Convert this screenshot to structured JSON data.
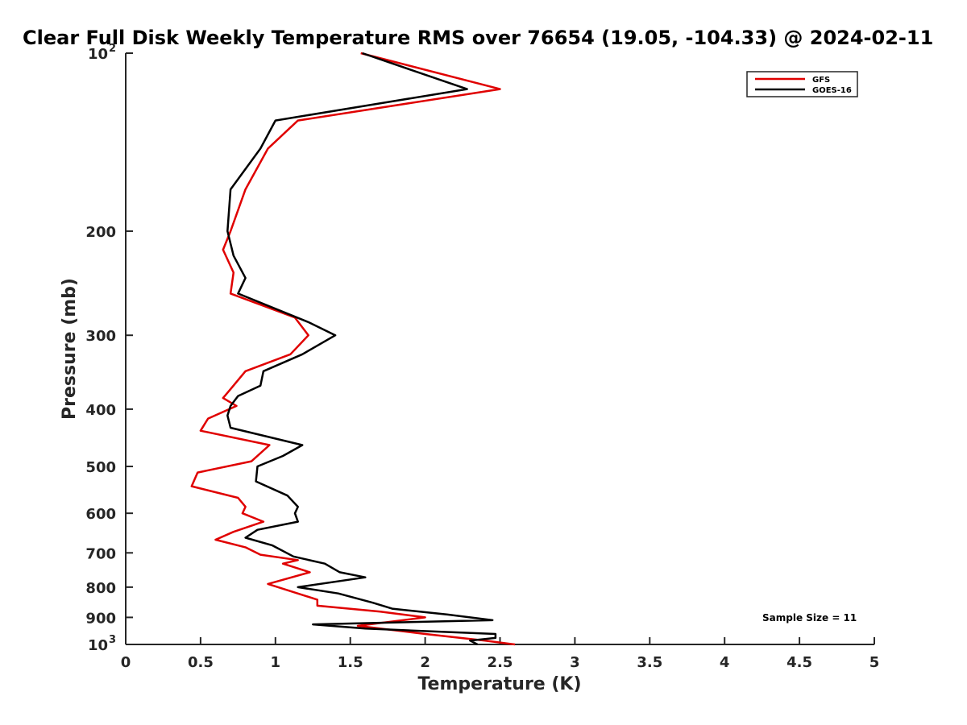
{
  "chart_data": {
    "type": "line",
    "title": "Clear Full Disk Weekly Temperature RMS over 76654 (19.05, -104.33) @ 2024-02-11",
    "xlabel": "Temperature (K)",
    "ylabel": "Pressure (mb)",
    "xlim": [
      0,
      5
    ],
    "ylim": [
      100,
      1000
    ],
    "yscale": "log",
    "y_reversed": true,
    "x_ticks": [
      0,
      0.5,
      1,
      1.5,
      2,
      2.5,
      3,
      3.5,
      4,
      4.5,
      5
    ],
    "x_tick_labels": [
      "0",
      "0.5",
      "1",
      "1.5",
      "2",
      "2.5",
      "3",
      "3.5",
      "4",
      "4.5",
      "5"
    ],
    "y_ticks": [
      {
        "value": 100,
        "label": "10",
        "exp": "2"
      },
      {
        "value": 200,
        "label": "200"
      },
      {
        "value": 300,
        "label": "300"
      },
      {
        "value": 400,
        "label": "400"
      },
      {
        "value": 500,
        "label": "500"
      },
      {
        "value": 600,
        "label": "600"
      },
      {
        "value": 700,
        "label": "700"
      },
      {
        "value": 800,
        "label": "800"
      },
      {
        "value": 900,
        "label": "900"
      },
      {
        "value": 1000,
        "label": "10",
        "exp": "3"
      }
    ],
    "legend_position": "top-right",
    "annotation": "Sample Size = 11",
    "series": [
      {
        "name": "GFS",
        "color": "#e00000",
        "points": [
          [
            1.57,
            100
          ],
          [
            2.5,
            115
          ],
          [
            1.15,
            130
          ],
          [
            0.95,
            145
          ],
          [
            0.8,
            170
          ],
          [
            0.7,
            200
          ],
          [
            0.65,
            215
          ],
          [
            0.72,
            235
          ],
          [
            0.7,
            255
          ],
          [
            1.13,
            280
          ],
          [
            1.22,
            300
          ],
          [
            1.1,
            323
          ],
          [
            0.8,
            345
          ],
          [
            0.7,
            370
          ],
          [
            0.65,
            383
          ],
          [
            0.74,
            395
          ],
          [
            0.55,
            415
          ],
          [
            0.5,
            435
          ],
          [
            0.96,
            460
          ],
          [
            0.84,
            490
          ],
          [
            0.48,
            512
          ],
          [
            0.44,
            540
          ],
          [
            0.75,
            565
          ],
          [
            0.8,
            585
          ],
          [
            0.78,
            600
          ],
          [
            0.92,
            620
          ],
          [
            0.72,
            645
          ],
          [
            0.6,
            665
          ],
          [
            0.8,
            685
          ],
          [
            0.9,
            705
          ],
          [
            1.15,
            720
          ],
          [
            1.05,
            730
          ],
          [
            1.23,
            755
          ],
          [
            0.95,
            790
          ],
          [
            1.28,
            840
          ],
          [
            1.28,
            860
          ],
          [
            1.7,
            880
          ],
          [
            2.0,
            900
          ],
          [
            1.55,
            930
          ],
          [
            2.0,
            960
          ],
          [
            2.4,
            985
          ],
          [
            2.6,
            1000
          ]
        ]
      },
      {
        "name": "GOES-16",
        "color": "#000000",
        "points": [
          [
            1.58,
            100
          ],
          [
            2.28,
            115
          ],
          [
            1.0,
            130
          ],
          [
            0.9,
            145
          ],
          [
            0.7,
            170
          ],
          [
            0.68,
            200
          ],
          [
            0.72,
            220
          ],
          [
            0.8,
            240
          ],
          [
            0.75,
            255
          ],
          [
            1.22,
            285
          ],
          [
            1.4,
            300
          ],
          [
            1.18,
            323
          ],
          [
            0.92,
            345
          ],
          [
            0.9,
            365
          ],
          [
            0.75,
            380
          ],
          [
            0.7,
            395
          ],
          [
            0.68,
            410
          ],
          [
            0.7,
            430
          ],
          [
            1.18,
            460
          ],
          [
            1.05,
            480
          ],
          [
            0.88,
            500
          ],
          [
            0.87,
            530
          ],
          [
            1.08,
            560
          ],
          [
            1.15,
            585
          ],
          [
            1.13,
            600
          ],
          [
            1.15,
            620
          ],
          [
            0.88,
            640
          ],
          [
            0.8,
            660
          ],
          [
            0.98,
            680
          ],
          [
            1.12,
            710
          ],
          [
            1.33,
            730
          ],
          [
            1.43,
            755
          ],
          [
            1.6,
            770
          ],
          [
            1.15,
            800
          ],
          [
            1.42,
            820
          ],
          [
            1.65,
            850
          ],
          [
            1.78,
            870
          ],
          [
            2.15,
            890
          ],
          [
            2.45,
            910
          ],
          [
            1.25,
            925
          ],
          [
            1.6,
            940
          ],
          [
            2.47,
            960
          ],
          [
            2.47,
            975
          ],
          [
            2.3,
            985
          ],
          [
            2.35,
            1000
          ]
        ]
      }
    ]
  }
}
